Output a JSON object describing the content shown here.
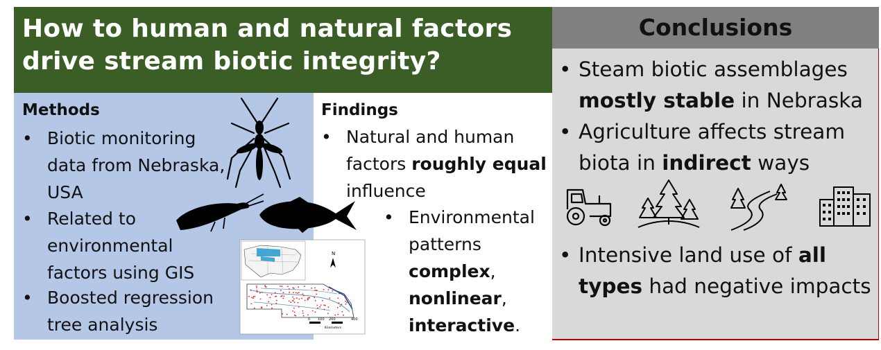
{
  "title": {
    "line1": "How to human and natural factors",
    "line2": "drive stream biotic integrity?"
  },
  "methods": {
    "heading": "Methods",
    "bullets": [
      {
        "lines": [
          "Biotic monitoring",
          "data from Nebraska,",
          "USA"
        ]
      },
      {
        "lines": [
          "Related to",
          "environmental",
          "factors using GIS"
        ]
      },
      {
        "lines": [
          "Boosted regression",
          "tree analysis"
        ]
      }
    ]
  },
  "findings": {
    "heading": "Findings",
    "b1": {
      "l1": "Natural and human",
      "l2a": "factors ",
      "l2b": "roughly equal",
      "l3": "influence"
    },
    "b2": {
      "l1": "Environmental",
      "l2": "patterns",
      "l3b": "complex",
      "l3a": ",",
      "l4b": "nonlinear",
      "l4a": ",",
      "l5b": "interactive",
      "l5a": "."
    }
  },
  "conclusions": {
    "heading": "Conclusions",
    "b1": {
      "l1": "Steam biotic assemblages",
      "l2b": "mostly stable",
      "l2a": " in Nebraska"
    },
    "b2": {
      "l1": "Agriculture affects stream",
      "l2a": "biota in ",
      "l2b": "indirect",
      "l2c": " ways"
    },
    "b3": {
      "l1a": "Intensive land use of ",
      "l1b": "all",
      "l2b": "types",
      "l2a": " had negative impacts"
    }
  },
  "map": {
    "north_label": "N",
    "scale_ticks": [
      "0",
      "100",
      "200",
      "400"
    ],
    "scale_unit": "Kilometers"
  },
  "colors": {
    "title_bg": "#3b5e27",
    "methods_bg": "#b4c7e7",
    "conclusions_bg": "#d9d9d9",
    "conclusions_header_bg": "#808080",
    "accent_line": "#c00000"
  },
  "icons": [
    "mosquito-icon",
    "stonefly-icon",
    "fish-icon",
    "tractor-icon",
    "forest-icon",
    "stream-icon",
    "city-icon",
    "nebraska-map"
  ]
}
